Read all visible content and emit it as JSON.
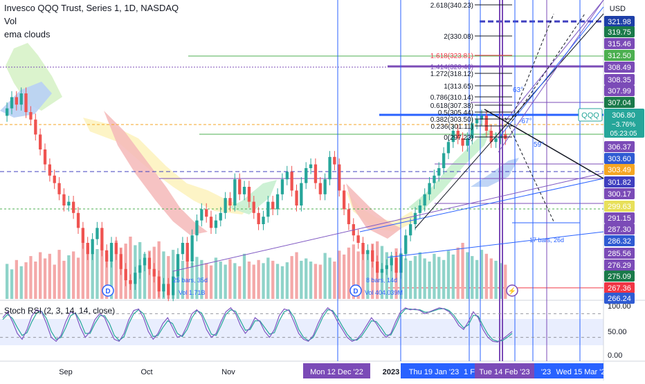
{
  "header": {
    "title": "Invesco QQQ Trust, Series 1, 1D, NASDAQ",
    "vol_label": "Vol",
    "ema_label": "ema clouds"
  },
  "currency": "USD",
  "symbol_tag": "QQQ",
  "last_price": {
    "value": "306.80",
    "change": "−3.76%",
    "countdown": "05:23:05"
  },
  "price_scale": [
    {
      "text": "321.98",
      "bg": "#1e3fa8"
    },
    {
      "text": "319.75",
      "bg": "#1a7a4a"
    },
    {
      "text": "315.46",
      "bg": "#7b4bb7"
    },
    {
      "text": "312.50",
      "bg": "#4caf50"
    },
    {
      "text": "308.49",
      "bg": "#7b4bb7"
    },
    {
      "text": "308.35",
      "bg": "#7b4bb7"
    },
    {
      "text": "307.99",
      "bg": "#7b4bb7"
    },
    {
      "text": "307.04",
      "bg": "#1a7a4a"
    },
    {
      "text": "306.37",
      "bg": "#7b4bb7"
    },
    {
      "text": "303.60",
      "bg": "#2f5bd3"
    },
    {
      "text": "303.49",
      "bg": "#f5a623"
    },
    {
      "text": "301.82",
      "bg": "#3f3fbf"
    },
    {
      "text": "300.17",
      "bg": "#7b4bb7"
    },
    {
      "text": "299.63",
      "bg": "#e8e05a"
    },
    {
      "text": "291.15",
      "bg": "#7b4bb7"
    },
    {
      "text": "287.30",
      "bg": "#7b4bb7"
    },
    {
      "text": "286.32",
      "bg": "#2f5bd3"
    },
    {
      "text": "285.56",
      "bg": "#7b4bb7"
    },
    {
      "text": "276.29",
      "bg": "#7b4bb7"
    },
    {
      "text": "275.09",
      "bg": "#1a7a4a"
    },
    {
      "text": "267.36",
      "bg": "#f23645"
    },
    {
      "text": "266.24",
      "bg": "#2f5bd3"
    }
  ],
  "fib_levels": [
    {
      "label": "2.618(340.23)",
      "color": "#131722"
    },
    {
      "label": "2(330.08)",
      "color": "#131722"
    },
    {
      "label": "1.618(323.81)",
      "color": "#f23645"
    },
    {
      "label": "1.414(320.46)",
      "color": "#7b4bb7"
    },
    {
      "label": "1.272(318.12)",
      "color": "#131722"
    },
    {
      "label": "1(313.65)",
      "color": "#131722"
    },
    {
      "label": "0.786(310.14)",
      "color": "#131722"
    },
    {
      "label": "0.618(307.38)",
      "color": "#131722"
    },
    {
      "label": "0.5(305.44)",
      "color": "#131722"
    },
    {
      "label": "0.382(303.50)",
      "color": "#131722"
    },
    {
      "label": "0.236(301.11)",
      "color": "#131722"
    },
    {
      "label": "0(297.23)",
      "color": "#131722"
    }
  ],
  "annotations": {
    "angle_1": "63°",
    "angle_2": "-67°",
    "angle_3": "59°",
    "range_1": "25 bars, 35d",
    "vol_1": "Vol 1.71B",
    "range_2": "8 bars, 14d",
    "vol_2": "Vol 404.039M",
    "range_3": "17 bars, 26d",
    "dividend_marker": "D"
  },
  "stoch": {
    "label": "Stoch RSI (2, 3, 14, 14, close)",
    "scale": [
      "100.00",
      "50.00",
      "0.00"
    ]
  },
  "time_axis": {
    "labels": [
      "Sep",
      "Oct",
      "Nov",
      "2023"
    ],
    "highlights": [
      {
        "text": "Mon 12 Dec '22",
        "bg": "#7b4bb7"
      },
      {
        "text": "Thu 19 Jan '23",
        "bg": "#2962ff"
      },
      {
        "text": "1 F",
        "bg": "#2962ff"
      },
      {
        "text": "Tue 14 Feb '23",
        "bg": "#7b4bb7"
      },
      {
        "text": "'23",
        "bg": "#2962ff"
      },
      {
        "text": "Wed 15 Mar '2",
        "bg": "#2962ff"
      }
    ]
  },
  "colors": {
    "up": "#26a69a",
    "down": "#ef5350",
    "stoch_k": "#7e57c2",
    "stoch_d": "#26a69a"
  },
  "chart_data": {
    "type": "candlestick",
    "title": "Invesco QQQ Trust, Series 1, 1D, NASDAQ",
    "x_labels": [
      "Sep",
      "Oct",
      "Nov",
      "2023"
    ],
    "y_ticks": [
      321.98,
      319.75,
      315.46,
      312.5,
      308.49,
      308.35,
      307.99,
      307.04,
      306.8,
      306.37,
      303.6,
      303.49,
      301.82,
      300.17,
      299.63,
      291.15,
      287.3,
      286.32,
      285.56,
      276.29,
      275.09,
      267.36
    ],
    "last_price": 306.8,
    "change_percent": -3.76,
    "close_series": [
      315,
      318,
      316,
      319,
      314,
      312,
      308,
      304,
      300,
      297,
      295,
      292,
      289,
      290,
      287,
      283,
      279,
      276,
      280,
      283,
      277,
      274,
      279,
      276,
      272,
      269,
      268,
      271,
      273,
      275,
      272,
      270,
      266,
      268,
      265,
      270,
      276,
      279,
      274,
      281,
      285,
      288,
      286,
      283,
      285,
      287,
      291,
      289,
      296,
      292,
      294,
      290,
      287,
      284,
      286,
      290,
      288,
      292,
      296,
      298,
      293,
      289,
      295,
      299,
      300,
      295,
      292,
      296,
      302,
      300,
      293,
      288,
      284,
      281,
      279,
      276,
      277,
      274,
      271,
      272,
      273,
      275,
      271,
      276,
      281,
      284,
      287,
      289,
      292,
      295,
      297,
      299,
      303,
      306,
      309,
      307,
      305,
      307,
      311,
      312,
      313,
      309,
      306,
      307,
      308,
      306.8
    ],
    "volume_series": [
      45,
      38,
      50,
      42,
      47,
      55,
      48,
      60,
      52,
      58,
      44,
      63,
      49,
      56,
      61,
      53,
      72,
      68,
      59,
      64,
      70,
      57,
      62,
      75,
      66,
      71,
      80,
      69,
      73,
      58,
      62,
      67,
      74,
      61,
      55,
      63,
      52,
      49,
      58,
      47,
      54,
      50,
      46,
      43,
      53,
      48,
      44,
      51,
      46,
      42,
      58,
      48,
      44,
      50,
      46,
      53,
      49,
      45,
      42,
      47,
      55,
      60,
      49,
      52,
      48,
      45,
      44,
      59,
      53,
      48,
      62,
      57,
      66,
      70,
      61,
      58,
      63,
      71,
      74,
      68,
      60,
      56,
      65,
      59,
      52,
      49,
      55,
      60,
      52,
      48,
      58,
      54,
      50,
      62,
      57,
      66,
      72,
      60,
      55,
      50,
      63,
      58,
      52,
      49,
      46,
      44
    ],
    "stoch_k": [
      70,
      85,
      60,
      30,
      15,
      40,
      75,
      90,
      85,
      55,
      20,
      10,
      25,
      60,
      85,
      80,
      45,
      20,
      35,
      65,
      80,
      70,
      40,
      15,
      10,
      30,
      65,
      88,
      92,
      70,
      35,
      15,
      30,
      55,
      70,
      45,
      20,
      25,
      50,
      80,
      90,
      75,
      40,
      20,
      30,
      60,
      85,
      95,
      80,
      50,
      30,
      45,
      70,
      60,
      35,
      20,
      40,
      75,
      92,
      88,
      60,
      30,
      15,
      10,
      25,
      55,
      80,
      95,
      85,
      60,
      40,
      20,
      10,
      15,
      30,
      50,
      70,
      55,
      35,
      20,
      30,
      60,
      85,
      95,
      90,
      92,
      88,
      80,
      85,
      90,
      95,
      92,
      85,
      70,
      50,
      40,
      60,
      85,
      70,
      40,
      20,
      10,
      8,
      15,
      25,
      35
    ],
    "stoch_d": [
      65,
      78,
      68,
      45,
      25,
      32,
      60,
      82,
      86,
      68,
      35,
      15,
      20,
      45,
      75,
      82,
      60,
      30,
      30,
      55,
      75,
      75,
      55,
      25,
      12,
      22,
      55,
      80,
      90,
      80,
      50,
      22,
      25,
      45,
      62,
      55,
      30,
      22,
      40,
      70,
      88,
      82,
      55,
      28,
      25,
      50,
      78,
      90,
      86,
      62,
      38,
      40,
      62,
      62,
      45,
      28,
      32,
      62,
      85,
      90,
      72,
      40,
      20,
      12,
      20,
      45,
      72,
      90,
      88,
      70,
      48,
      28,
      14,
      13,
      24,
      42,
      62,
      60,
      45,
      26,
      26,
      50,
      78,
      92,
      92,
      90,
      90,
      84,
      84,
      88,
      92,
      93,
      88,
      76,
      58,
      44,
      52,
      76,
      74,
      50,
      28,
      14,
      10,
      12,
      20,
      30
    ],
    "stoch_scale": [
      100,
      50,
      0
    ]
  }
}
